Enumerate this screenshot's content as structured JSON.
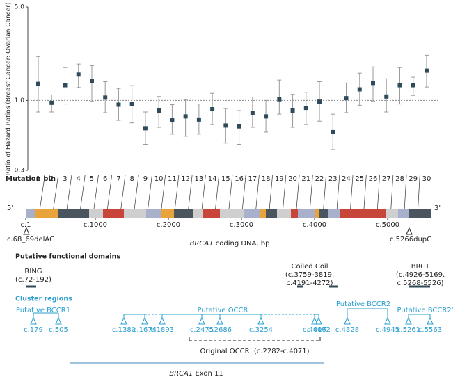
{
  "chart_data": {
    "type": "errorbar",
    "y_label": "Ratio of Hazard Ratios (Breast Cancer: Ovarian Cancer)",
    "x_label": "Mutation bin",
    "categories": [
      "1",
      "2",
      "3",
      "4",
      "5",
      "6",
      "7",
      "8",
      "9",
      "10",
      "11",
      "12",
      "13",
      "14",
      "15",
      "16",
      "17",
      "18",
      "19",
      "20",
      "21",
      "22",
      "23",
      "24",
      "25",
      "26",
      "27",
      "28",
      "29",
      "30"
    ],
    "values": [
      1.33,
      0.96,
      1.3,
      1.56,
      1.4,
      1.05,
      0.93,
      0.94,
      0.62,
      0.84,
      0.71,
      0.76,
      0.72,
      0.86,
      0.65,
      0.64,
      0.81,
      0.76,
      1.02,
      0.84,
      0.88,
      0.98,
      0.58,
      1.04,
      1.21,
      1.35,
      1.07,
      1.3,
      1.3,
      1.67
    ],
    "lower": [
      0.82,
      0.82,
      0.94,
      1.25,
      0.99,
      0.81,
      0.71,
      0.68,
      0.47,
      0.63,
      0.56,
      0.54,
      0.56,
      0.66,
      0.48,
      0.47,
      0.63,
      0.58,
      0.79,
      0.63,
      0.66,
      0.7,
      0.43,
      0.81,
      0.92,
      0.99,
      0.82,
      0.94,
      1.09,
      1.26
    ],
    "upper": [
      2.13,
      1.1,
      1.76,
      1.87,
      1.82,
      1.38,
      1.23,
      1.29,
      0.82,
      1.07,
      0.93,
      1.01,
      0.94,
      1.13,
      0.87,
      0.84,
      1.06,
      1.0,
      1.42,
      1.11,
      1.15,
      1.38,
      0.79,
      1.35,
      1.6,
      1.78,
      1.45,
      1.76,
      1.49,
      2.18
    ],
    "color": "#2f4a5a",
    "ylim": [
      0.3,
      5
    ],
    "yticks": [
      0.3,
      {
        "value": 1,
        "label": "1.0"
      },
      {
        "value": 5,
        "label": "5.0"
      }
    ],
    "log_scale": true,
    "reference_line": 1
  },
  "gene": {
    "five_prime": "5'",
    "three_prime": "3'",
    "ticks": [
      "c.1",
      "c.1000",
      "c.2000",
      "c.3000",
      "c.4000",
      "c.5000"
    ],
    "markers": [
      "c.68_69delAG",
      "c.5266dupC"
    ],
    "axis_label_gene": "BRCA1",
    "axis_label": " coding DNA, bp"
  },
  "domains": {
    "heading": "Putative functional domains",
    "items": [
      {
        "name": "RING",
        "range": [
          "(c.72-192)"
        ]
      },
      {
        "name": "Coiled Coil",
        "range": [
          "(c.3759-3819,",
          "c.4191-4272)"
        ]
      },
      {
        "name": "BRCT",
        "range": [
          "(c.4926-5169,",
          "c.5268-5526)"
        ]
      }
    ]
  },
  "clusters": {
    "heading": "Cluster regions",
    "regions": [
      {
        "name": "Putative BCCR1",
        "sites": [
          "c.179",
          "c.505"
        ]
      },
      {
        "name": "Putative OCCR",
        "sites": [
          "c.1380",
          "c.1674",
          "c.1893",
          "c.2475",
          "c.2686",
          "c.3254",
          "c.4017",
          "c.4062"
        ]
      },
      {
        "name": "Putative BCCR2",
        "sites": [
          "c.4328",
          "c.4945"
        ]
      },
      {
        "name": "Putative BCCR2'",
        "sites": [
          "c.5261",
          "c.5563"
        ]
      }
    ],
    "original": "Original OCCR  (c.2282-c.4071)",
    "exon_gene": "BRCA1",
    "exon": " Exon 11"
  }
}
